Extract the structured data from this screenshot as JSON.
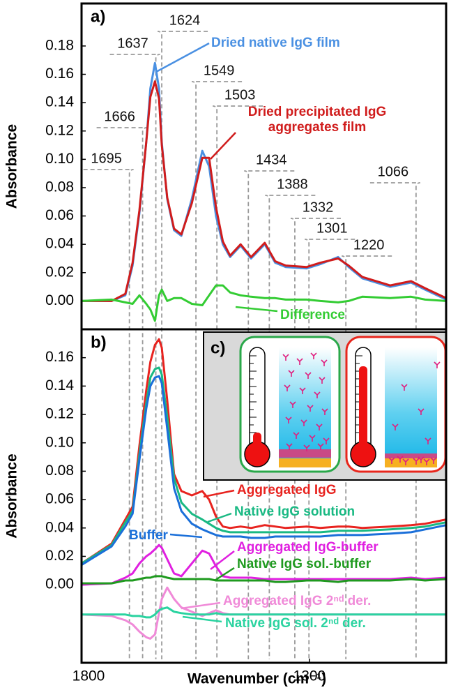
{
  "chart_data": [
    {
      "type": "line",
      "title": "a)",
      "ylabel": "Absorbance",
      "xlim": [
        1800,
        1000
      ],
      "ylim": [
        -0.02,
        0.21
      ],
      "yticks": [
        {
          "value": 0,
          "label": "0.00"
        },
        {
          "value": 0.02,
          "label": "0.02"
        },
        {
          "value": 0.04,
          "label": "0.04"
        },
        {
          "value": 0.06,
          "label": "0.06"
        },
        {
          "value": 0.08,
          "label": "0.08"
        },
        {
          "value": 0.1,
          "label": "0.10"
        },
        {
          "value": 0.12,
          "label": "0.12"
        },
        {
          "value": 0.14,
          "label": "0.14"
        },
        {
          "value": 0.16,
          "label": "0.16"
        },
        {
          "value": 0.18,
          "label": "0.18"
        }
      ],
      "peaks": [
        1695,
        1666,
        1637,
        1624,
        1549,
        1503,
        1434,
        1388,
        1332,
        1301,
        1220,
        1066
      ],
      "x": [
        1800,
        1734,
        1704,
        1688,
        1673,
        1658,
        1649,
        1639,
        1630,
        1624,
        1612,
        1597,
        1581,
        1558,
        1535,
        1520,
        1505,
        1490,
        1474,
        1451,
        1428,
        1398,
        1375,
        1352,
        1306,
        1276,
        1237,
        1214,
        1184,
        1123,
        1077,
        1046,
        1000
      ],
      "series": [
        {
          "name": "Dried native IgG film",
          "color": "#4a90e2",
          "values": [
            0.0,
            0.0,
            0.004,
            0.025,
            0.062,
            0.112,
            0.15,
            0.168,
            0.15,
            0.112,
            0.072,
            0.05,
            0.046,
            0.072,
            0.106,
            0.095,
            0.06,
            0.04,
            0.031,
            0.039,
            0.03,
            0.04,
            0.027,
            0.024,
            0.023,
            0.026,
            0.031,
            0.024,
            0.016,
            0.01,
            0.013,
            0.008,
            0.001
          ]
        },
        {
          "name": "Dried precipitated IgG aggregates film",
          "color": "#d01c1c",
          "values": [
            0.0,
            0.0,
            0.005,
            0.027,
            0.064,
            0.112,
            0.144,
            0.155,
            0.143,
            0.11,
            0.073,
            0.051,
            0.047,
            0.069,
            0.101,
            0.101,
            0.066,
            0.042,
            0.032,
            0.04,
            0.031,
            0.041,
            0.028,
            0.025,
            0.024,
            0.027,
            0.03,
            0.025,
            0.017,
            0.011,
            0.014,
            0.009,
            0.002
          ]
        },
        {
          "name": "Difference",
          "color": "#33cc33",
          "values": [
            0.0,
            0.001,
            -0.001,
            -0.002,
            0.004,
            -0.002,
            -0.006,
            -0.014,
            0.004,
            0.008,
            0.0,
            0.002,
            0.002,
            -0.002,
            -0.003,
            0.004,
            0.011,
            0.011,
            0.006,
            0.004,
            0.003,
            0.002,
            0.002,
            0.001,
            0.001,
            0.0,
            -0.001,
            0.0,
            0.003,
            0.002,
            0.003,
            0.001,
            0.0
          ]
        }
      ]
    },
    {
      "type": "line",
      "title": "b)",
      "ylabel": "Absorbance",
      "xlabel": "Wavenumber (cm⁻¹)",
      "inset_title": "c)",
      "xlim": [
        1800,
        1000
      ],
      "xticks": [
        1800,
        1300
      ],
      "ylim": [
        -0.055,
        0.18
      ],
      "yticks": [
        {
          "value": 0,
          "label": "0.00"
        },
        {
          "value": 0.02,
          "label": "0.02"
        },
        {
          "value": 0.04,
          "label": "0.04"
        },
        {
          "value": 0.06,
          "label": "0.06"
        },
        {
          "value": 0.08,
          "label": "0.08"
        },
        {
          "value": 0.1,
          "label": "0.10"
        },
        {
          "value": 0.12,
          "label": "0.12"
        },
        {
          "value": 0.14,
          "label": "0.14"
        },
        {
          "value": 0.16,
          "label": "0.16"
        }
      ],
      "x": [
        1800,
        1734,
        1704,
        1688,
        1673,
        1658,
        1649,
        1639,
        1630,
        1624,
        1612,
        1597,
        1581,
        1558,
        1535,
        1520,
        1505,
        1490,
        1474,
        1451,
        1428,
        1398,
        1375,
        1352,
        1306,
        1276,
        1237,
        1214,
        1184,
        1123,
        1077,
        1046,
        1000
      ],
      "series": [
        {
          "name": "Aggregated IgG",
          "color": "#e8231f",
          "values": [
            0.015,
            0.029,
            0.046,
            0.055,
            0.098,
            0.137,
            0.157,
            0.169,
            0.173,
            0.167,
            0.13,
            0.078,
            0.066,
            0.063,
            0.066,
            0.06,
            0.048,
            0.041,
            0.04,
            0.041,
            0.04,
            0.042,
            0.041,
            0.04,
            0.041,
            0.04,
            0.041,
            0.041,
            0.04,
            0.041,
            0.042,
            0.043,
            0.046
          ]
        },
        {
          "name": "Native IgG solution",
          "color": "#19b983",
          "values": [
            0.015,
            0.028,
            0.044,
            0.052,
            0.092,
            0.128,
            0.146,
            0.152,
            0.153,
            0.148,
            0.118,
            0.075,
            0.058,
            0.05,
            0.046,
            0.043,
            0.04,
            0.038,
            0.037,
            0.037,
            0.037,
            0.037,
            0.037,
            0.037,
            0.037,
            0.037,
            0.038,
            0.038,
            0.038,
            0.039,
            0.04,
            0.041,
            0.044
          ]
        },
        {
          "name": "Buffer",
          "color": "#1a6fd9",
          "values": [
            0.014,
            0.027,
            0.041,
            0.05,
            0.088,
            0.124,
            0.14,
            0.146,
            0.147,
            0.142,
            0.11,
            0.068,
            0.052,
            0.043,
            0.039,
            0.037,
            0.035,
            0.034,
            0.034,
            0.034,
            0.033,
            0.033,
            0.034,
            0.034,
            0.034,
            0.034,
            0.035,
            0.035,
            0.035,
            0.036,
            0.037,
            0.039,
            0.042
          ]
        },
        {
          "name": "Aggregated IgG-buffer",
          "color": "#e020e0",
          "values": [
            0.0,
            0.001,
            0.005,
            0.008,
            0.015,
            0.02,
            0.022,
            0.025,
            0.028,
            0.026,
            0.018,
            0.008,
            0.006,
            0.015,
            0.024,
            0.022,
            0.013,
            0.006,
            0.005,
            0.005,
            0.005,
            0.004,
            0.004,
            0.004,
            0.004,
            0.004,
            0.004,
            0.004,
            0.004,
            0.004,
            0.005,
            0.004,
            0.005
          ]
        },
        {
          "name": "Native IgG sol.-buffer",
          "color": "#1f9a1f",
          "values": [
            0.001,
            0.001,
            0.003,
            0.003,
            0.004,
            0.005,
            0.005,
            0.006,
            0.006,
            0.006,
            0.005,
            0.004,
            0.004,
            0.004,
            0.004,
            0.004,
            0.003,
            0.003,
            0.003,
            0.003,
            0.003,
            0.003,
            0.002,
            0.002,
            0.003,
            0.003,
            0.002,
            0.003,
            0.003,
            0.003,
            0.004,
            0.003,
            0.004
          ]
        },
        {
          "name": "Aggregated IgG 2ⁿᵈ der.",
          "color": "#f08ad8",
          "values": [
            -0.021,
            -0.022,
            -0.025,
            -0.028,
            -0.033,
            -0.037,
            -0.038,
            -0.035,
            -0.02,
            -0.01,
            -0.002,
            -0.01,
            -0.016,
            -0.019,
            -0.022,
            -0.02,
            -0.018,
            -0.02,
            -0.021,
            -0.021,
            -0.021,
            -0.021,
            -0.021,
            -0.021,
            -0.021,
            -0.021,
            -0.021,
            -0.021,
            -0.021,
            -0.021,
            -0.021,
            -0.021,
            -0.021
          ]
        },
        {
          "name": "Native IgG sol. 2ⁿᵈ der.",
          "color": "#2ad3a0",
          "values": [
            -0.021,
            -0.021,
            -0.021,
            -0.022,
            -0.022,
            -0.023,
            -0.023,
            -0.021,
            -0.018,
            -0.017,
            -0.016,
            -0.019,
            -0.02,
            -0.021,
            -0.021,
            -0.021,
            -0.02,
            -0.021,
            -0.021,
            -0.021,
            -0.021,
            -0.021,
            -0.021,
            -0.021,
            -0.021,
            -0.021,
            -0.021,
            -0.021,
            -0.021,
            -0.021,
            -0.021,
            -0.021,
            -0.021
          ]
        }
      ]
    }
  ]
}
